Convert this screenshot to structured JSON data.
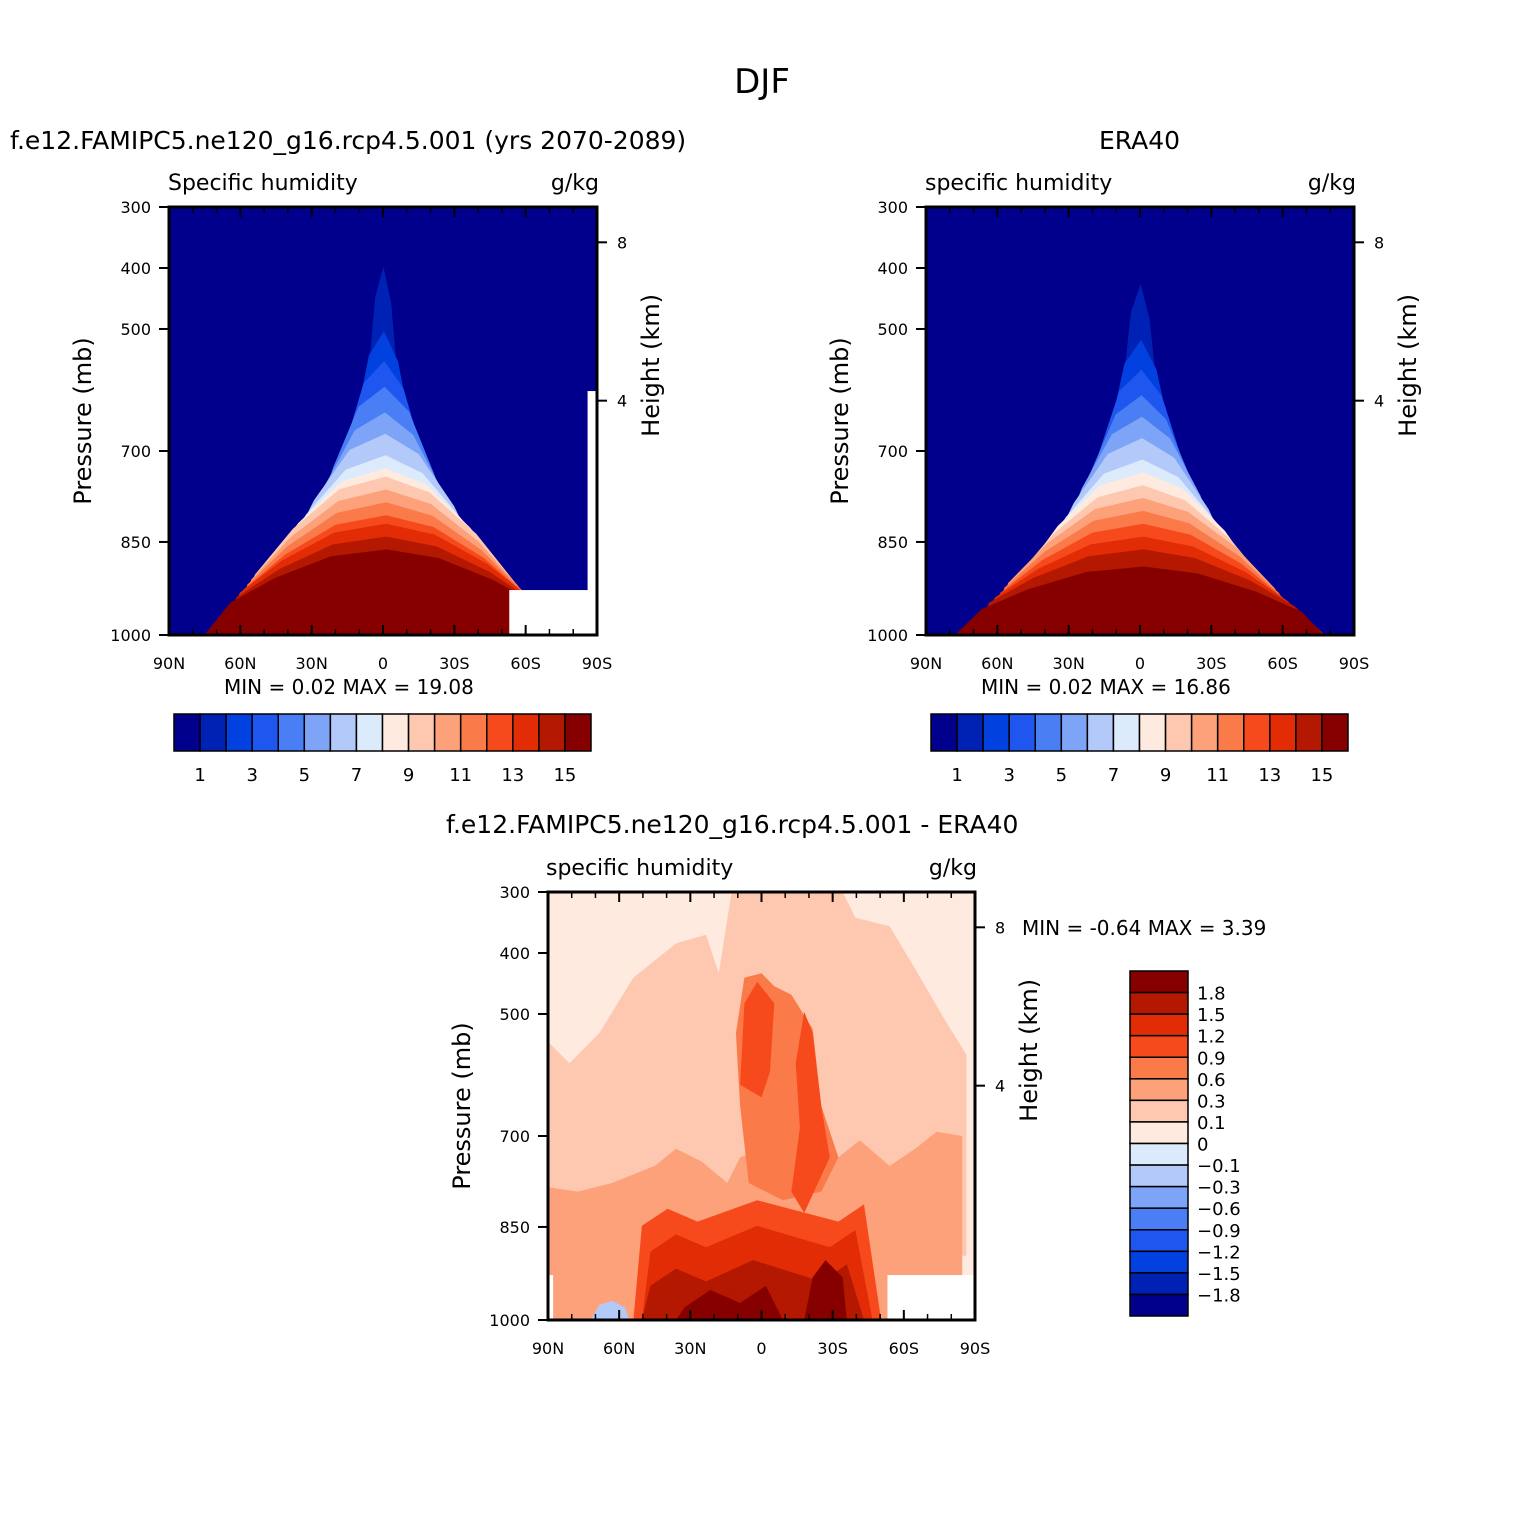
{
  "figure": {
    "title": "DJF"
  },
  "panels": {
    "model": {
      "title": "f.e12.FAMIPC5.ne120_g16.rcp4.5.001 (yrs 2070-2089)",
      "subtitle_left": "Specific humidity",
      "subtitle_right": "g/kg",
      "ylabel": "Pressure (mb)",
      "ylabel_right": "Height (km)",
      "minmax": "MIN =     0.02   MAX =    19.08"
    },
    "obs": {
      "title": "ERA40",
      "subtitle_left": "specific humidity",
      "subtitle_right": "g/kg",
      "ylabel": "Pressure (mb)",
      "ylabel_right": "Height (km)",
      "minmax": "MIN =     0.02   MAX =    16.86"
    },
    "diff": {
      "title": "f.e12.FAMIPC5.ne120_g16.rcp4.5.001 - ERA40",
      "subtitle_left": "specific humidity",
      "subtitle_right": "g/kg",
      "ylabel": "Pressure (mb)",
      "ylabel_right": "Height (km)",
      "minmax": "MIN =   -0.64   MAX =     3.39"
    }
  },
  "chart_data": [
    {
      "type": "heatmap",
      "panel": "model",
      "x_ticks": [
        "90N",
        "60N",
        "30N",
        "0",
        "30S",
        "60S",
        "90S"
      ],
      "y_ticks": [
        "300",
        "400",
        "500",
        "700",
        "850",
        "1000"
      ],
      "y_ticks_right": [
        "8",
        "4"
      ],
      "colorbar_labels": [
        "1",
        "3",
        "5",
        "7",
        "9",
        "11",
        "13",
        "15"
      ],
      "colors": [
        "#00008c",
        "#0022b4",
        "#0041e0",
        "#2056f0",
        "#4a7ef5",
        "#7ea4f8",
        "#b2c9fa",
        "#dcebfc",
        "#feeade",
        "#fec8b0",
        "#fca17a",
        "#fb7a4a",
        "#f74a1c",
        "#e12c05",
        "#b41800",
        "#870000"
      ],
      "ridge_levels": [
        [
          1,
          0.06,
          0.86
        ],
        [
          2,
          0.11,
          0.71
        ],
        [
          3,
          0.15,
          0.64
        ],
        [
          4,
          0.19,
          0.58
        ],
        [
          5,
          0.22,
          0.52
        ],
        [
          6,
          0.26,
          0.47
        ],
        [
          7,
          0.29,
          0.42
        ],
        [
          8,
          0.32,
          0.39
        ],
        [
          9,
          0.34,
          0.37
        ],
        [
          10,
          0.35,
          0.34
        ],
        [
          11,
          0.36,
          0.31
        ],
        [
          12,
          0.37,
          0.28
        ],
        [
          13,
          0.38,
          0.26
        ],
        [
          14,
          0.39,
          0.23
        ],
        [
          15,
          0.405,
          0.2
        ]
      ],
      "min": 0.02,
      "max": 19.08
    },
    {
      "type": "heatmap",
      "panel": "obs",
      "x_ticks": [
        "90N",
        "60N",
        "30N",
        "0",
        "30S",
        "60S",
        "90S"
      ],
      "y_ticks": [
        "300",
        "400",
        "500",
        "700",
        "850",
        "1000"
      ],
      "y_ticks_right": [
        "8",
        "4"
      ],
      "colorbar_labels": [
        "1",
        "3",
        "5",
        "7",
        "9",
        "11",
        "13",
        "15"
      ],
      "colors": [
        "#00008c",
        "#0022b4",
        "#0041e0",
        "#2056f0",
        "#4a7ef5",
        "#7ea4f8",
        "#b2c9fa",
        "#dcebfc",
        "#feeade",
        "#fec8b0",
        "#fca17a",
        "#fb7a4a",
        "#f74a1c",
        "#e12c05",
        "#b41800",
        "#870000"
      ],
      "ridge_levels": [
        [
          1,
          0.07,
          0.82
        ],
        [
          2,
          0.12,
          0.69
        ],
        [
          3,
          0.16,
          0.62
        ],
        [
          4,
          0.19,
          0.56
        ],
        [
          5,
          0.22,
          0.51
        ],
        [
          6,
          0.25,
          0.46
        ],
        [
          7,
          0.28,
          0.41
        ],
        [
          8,
          0.31,
          0.38
        ],
        [
          9,
          0.33,
          0.35
        ],
        [
          10,
          0.35,
          0.32
        ],
        [
          11,
          0.36,
          0.29
        ],
        [
          12,
          0.37,
          0.26
        ],
        [
          13,
          0.385,
          0.23
        ],
        [
          14,
          0.4,
          0.2
        ],
        [
          15,
          0.42,
          0.16
        ]
      ],
      "min": 0.02,
      "max": 16.86
    },
    {
      "type": "heatmap",
      "panel": "diff",
      "x_ticks": [
        "90N",
        "60N",
        "30N",
        "0",
        "30S",
        "60S",
        "90S"
      ],
      "y_ticks": [
        "300",
        "400",
        "500",
        "700",
        "850",
        "1000"
      ],
      "y_ticks_right": [
        "8",
        "4"
      ],
      "colorbar_labels": [
        "1.8",
        "1.5",
        "1.2",
        "0.9",
        "0.6",
        "0.3",
        "0.1",
        "0",
        "-0.1",
        "-0.3",
        "-0.6",
        "-0.9",
        "-1.2",
        "-1.5",
        "-1.8"
      ],
      "colors": [
        "#870000",
        "#b41800",
        "#e12c05",
        "#f74a1c",
        "#fb7a4a",
        "#fca17a",
        "#fec8b0",
        "#feeade",
        "#dcebfc",
        "#b2c9fa",
        "#7ea4f8",
        "#4a7ef5",
        "#2056f0",
        "#0041e0",
        "#0022b4",
        "#00008c"
      ],
      "min": -0.64,
      "max": 3.39
    }
  ]
}
